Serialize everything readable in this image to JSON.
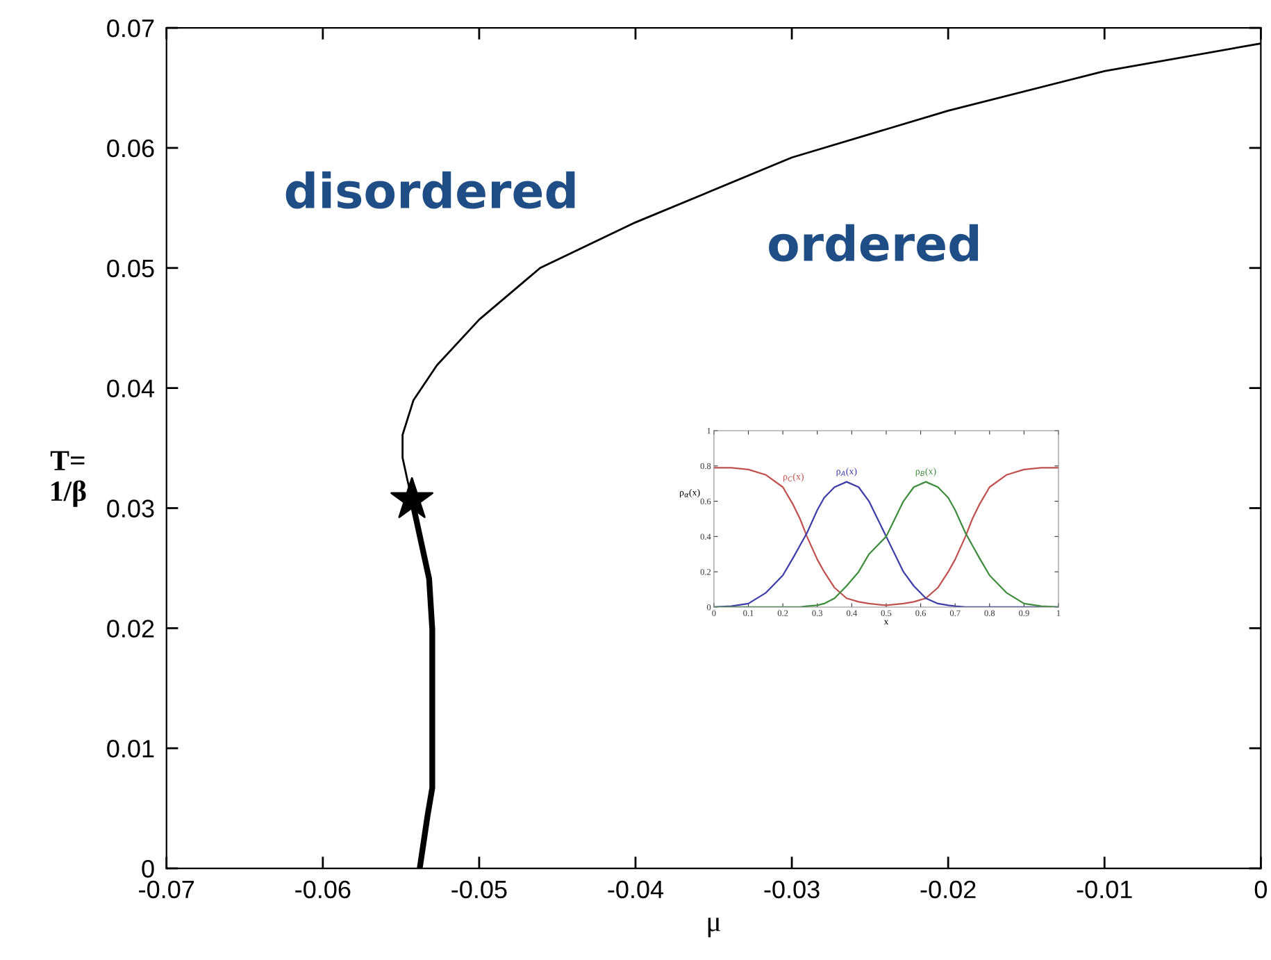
{
  "chart_data": [
    {
      "type": "line",
      "xlabel": "μ",
      "ylabel": "T=\n1/β",
      "xlim": [
        -0.07,
        0
      ],
      "ylim": [
        0,
        0.07
      ],
      "xticks": [
        -0.07,
        -0.06,
        -0.05,
        -0.04,
        -0.03,
        -0.02,
        -0.01,
        0
      ],
      "yticks": [
        0,
        0.01,
        0.02,
        0.03,
        0.04,
        0.05,
        0.06,
        0.07
      ],
      "grid": false,
      "legend": false,
      "annotations": [
        "disordered",
        "ordered"
      ],
      "series": [
        {
          "type": "line",
          "color": "#000000",
          "line_style": "solid",
          "x": [
            0,
            -0.01,
            -0.02,
            -0.03,
            -0.04,
            -0.0461,
            -0.05,
            -0.0527,
            -0.0542,
            -0.0549,
            -0.0549,
            -0.0546,
            -0.0543
          ],
          "values": [
            0.0687,
            0.0664,
            0.0631,
            0.0592,
            0.0538,
            0.05,
            0.0457,
            0.0419,
            0.039,
            0.0361,
            0.0342,
            0.0324,
            0.0307
          ]
        },
        {
          "type": "line",
          "color": "#000000",
          "line_style": "solid",
          "x": [
            -0.0543,
            -0.0532,
            -0.053,
            -0.053,
            -0.0533,
            -0.0538
          ],
          "values": [
            0.0307,
            0.0241,
            0.0199,
            0.0067,
            0.0044,
            0.0
          ]
        },
        {
          "type": "scatter",
          "color": "#000000",
          "marker": "star",
          "x": [
            -0.0543
          ],
          "values": [
            0.0307
          ]
        }
      ]
    },
    {
      "type": "line",
      "xlabel": "x",
      "ylabel": "ρ$_{α}$(x)",
      "xlim": [
        0,
        1
      ],
      "ylim": [
        0,
        1
      ],
      "xticks": [
        0,
        0.1,
        0.2,
        0.3,
        0.4,
        0.5,
        0.6,
        0.7,
        0.8,
        0.9,
        1
      ],
      "yticks": [
        0,
        0.2,
        0.4,
        0.6,
        0.8,
        1
      ],
      "grid": false,
      "legend": false,
      "line_style": "solid",
      "x": [
        0,
        0.05,
        0.1,
        0.15,
        0.2,
        0.23,
        0.25,
        0.27,
        0.3,
        0.32,
        0.35,
        0.385,
        0.42,
        0.45,
        0.5,
        0.55,
        0.58,
        0.615,
        0.65,
        0.68,
        0.7,
        0.73,
        0.75,
        0.77,
        0.8,
        0.85,
        0.9,
        0.95,
        1
      ],
      "series": [
        {
          "name": "ρ$_{C}$(x)",
          "color": "#c0504d",
          "values": [
            0.79,
            0.79,
            0.78,
            0.75,
            0.68,
            0.58,
            0.5,
            0.4,
            0.27,
            0.2,
            0.11,
            0.05,
            0.03,
            0.02,
            0.01,
            0.02,
            0.03,
            0.05,
            0.11,
            0.2,
            0.27,
            0.4,
            0.5,
            0.58,
            0.68,
            0.75,
            0.78,
            0.79,
            0.79
          ]
        },
        {
          "name": "ρ$_{A}$(x)",
          "color": "#3c3ca8",
          "values": [
            0.0,
            0.005,
            0.02,
            0.08,
            0.18,
            0.28,
            0.35,
            0.42,
            0.55,
            0.62,
            0.68,
            0.71,
            0.68,
            0.6,
            0.4,
            0.2,
            0.12,
            0.05,
            0.02,
            0.01,
            0.005,
            0.0,
            0.0,
            0.0,
            0.0,
            0.0,
            0.0,
            0.0,
            0.0
          ]
        },
        {
          "name": "ρ$_{B}$(x)",
          "color": "#3c8c3c",
          "values": [
            0.0,
            0.0,
            0.0,
            0.0,
            0.0,
            0.0,
            0.0,
            0.005,
            0.01,
            0.02,
            0.05,
            0.12,
            0.2,
            0.3,
            0.4,
            0.6,
            0.68,
            0.71,
            0.68,
            0.62,
            0.55,
            0.42,
            0.35,
            0.28,
            0.18,
            0.08,
            0.02,
            0.005,
            0.0
          ]
        }
      ]
    }
  ]
}
